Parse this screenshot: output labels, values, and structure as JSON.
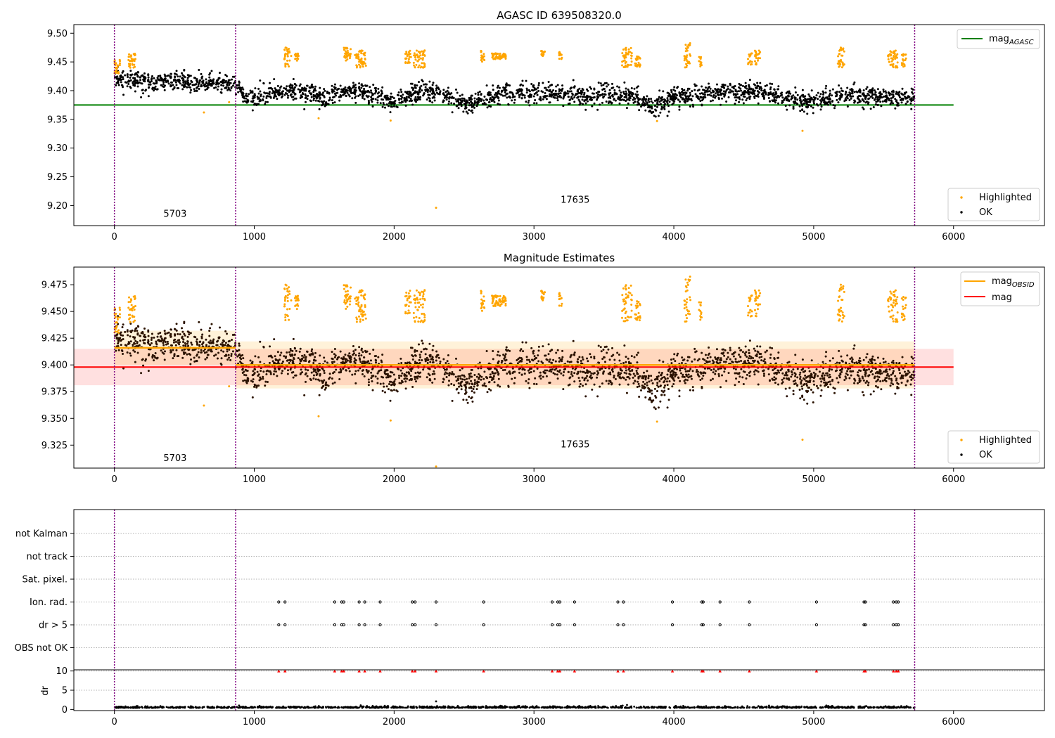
{
  "colors": {
    "ok": "#000000",
    "highlighted": "#ffa500",
    "mag_agasc": "#008000",
    "mag_obsid": "#ffa500",
    "mag": "#ff0000",
    "obsid_line": "#800080",
    "dr_flag": "#ff0000",
    "grid": "#b0b0b0"
  },
  "obsids": [
    {
      "start": 0,
      "end": 867,
      "label": "5703"
    },
    {
      "start": 867,
      "end": 5722,
      "label": "17635"
    }
  ],
  "vlines": [
    0,
    867,
    5722
  ],
  "chart_data": [
    {
      "id": "panel1",
      "type": "scatter",
      "title": "AGASC ID 639508320.0",
      "xlim": [
        -290,
        6650
      ],
      "ylim": [
        9.165,
        9.515
      ],
      "xticks": [
        0,
        1000,
        2000,
        3000,
        4000,
        5000,
        6000
      ],
      "yticks": [
        9.2,
        9.25,
        9.3,
        9.35,
        9.4,
        9.45,
        9.5
      ],
      "ytick_decimals": 2,
      "mag_agasc": 9.375,
      "mag_agasc_xrange": [
        -290,
        6000
      ],
      "legend_lines": [
        {
          "label": "mag",
          "sub": "AGASC",
          "color": "#008000"
        }
      ],
      "legend_points": [
        {
          "label": "Highlighted",
          "color": "#ffa500"
        },
        {
          "label": "OK",
          "color": "#000000"
        }
      ],
      "obsid_label_y": [
        9.18,
        9.205
      ],
      "series": {
        "ok_baseline": {
          "points": [
            [
              0,
              9.425
            ],
            [
              150,
              9.418
            ],
            [
              300,
              9.412
            ],
            [
              450,
              9.42
            ],
            [
              600,
              9.41
            ],
            [
              700,
              9.415
            ],
            [
              867,
              9.41
            ],
            [
              950,
              9.385
            ],
            [
              1100,
              9.395
            ],
            [
              1200,
              9.4
            ],
            [
              1400,
              9.395
            ],
            [
              1500,
              9.385
            ],
            [
              1700,
              9.4
            ],
            [
              1900,
              9.39
            ],
            [
              2000,
              9.38
            ],
            [
              2200,
              9.4
            ],
            [
              2400,
              9.39
            ],
            [
              2500,
              9.375
            ],
            [
              2800,
              9.397
            ],
            [
              3100,
              9.395
            ],
            [
              3400,
              9.39
            ],
            [
              3700,
              9.395
            ],
            [
              3850,
              9.37
            ],
            [
              4000,
              9.39
            ],
            [
              4300,
              9.395
            ],
            [
              4600,
              9.4
            ],
            [
              4900,
              9.38
            ],
            [
              5200,
              9.39
            ],
            [
              5500,
              9.39
            ],
            [
              5722,
              9.385
            ]
          ],
          "spread": 0.014,
          "count": 2600
        },
        "highlighted_clusters": [
          {
            "x": [
              0,
              40
            ],
            "y": [
              9.43,
              9.46
            ]
          },
          {
            "x": [
              100,
              150
            ],
            "y": [
              9.44,
              9.465
            ]
          },
          {
            "x": [
              1215,
              1265
            ],
            "y": [
              9.44,
              9.475
            ]
          },
          {
            "x": [
              1290,
              1320
            ],
            "y": [
              9.45,
              9.465
            ]
          },
          {
            "x": [
              1640,
              1690
            ],
            "y": [
              9.45,
              9.475
            ]
          },
          {
            "x": [
              1720,
              1800
            ],
            "y": [
              9.44,
              9.47
            ]
          },
          {
            "x": [
              2080,
              2120
            ],
            "y": [
              9.445,
              9.47
            ]
          },
          {
            "x": [
              2140,
              2220
            ],
            "y": [
              9.44,
              9.47
            ]
          },
          {
            "x": [
              2620,
              2650
            ],
            "y": [
              9.45,
              9.47
            ]
          },
          {
            "x": [
              2700,
              2800
            ],
            "y": [
              9.455,
              9.465
            ]
          },
          {
            "x": [
              3050,
              3080
            ],
            "y": [
              9.46,
              9.47
            ]
          },
          {
            "x": [
              3180,
              3200
            ],
            "y": [
              9.455,
              9.47
            ]
          },
          {
            "x": [
              3630,
              3700
            ],
            "y": [
              9.44,
              9.475
            ]
          },
          {
            "x": [
              3720,
              3760
            ],
            "y": [
              9.44,
              9.46
            ]
          },
          {
            "x": [
              4070,
              4120
            ],
            "y": [
              9.44,
              9.485
            ]
          },
          {
            "x": [
              4180,
              4200
            ],
            "y": [
              9.44,
              9.46
            ]
          },
          {
            "x": [
              4530,
              4560
            ],
            "y": [
              9.445,
              9.465
            ]
          },
          {
            "x": [
              4580,
              4620
            ],
            "y": [
              9.445,
              9.47
            ]
          },
          {
            "x": [
              5170,
              5220
            ],
            "y": [
              9.44,
              9.475
            ]
          },
          {
            "x": [
              5530,
              5600
            ],
            "y": [
              9.44,
              9.47
            ]
          },
          {
            "x": [
              5630,
              5660
            ],
            "y": [
              9.44,
              9.465
            ]
          }
        ],
        "highlighted_singles": [
          [
            640,
            9.362
          ],
          [
            820,
            9.38
          ],
          [
            1460,
            9.352
          ],
          [
            1975,
            9.348
          ],
          [
            2300,
            9.196
          ],
          [
            3880,
            9.347
          ],
          [
            4920,
            9.33
          ]
        ]
      }
    },
    {
      "id": "panel2",
      "type": "scatter",
      "title": "Magnitude Estimates",
      "xlim": [
        -290,
        6650
      ],
      "ylim": [
        9.3035,
        9.4915
      ],
      "xticks": [
        0,
        1000,
        2000,
        3000,
        4000,
        5000,
        6000
      ],
      "yticks": [
        9.325,
        9.35,
        9.375,
        9.4,
        9.425,
        9.45,
        9.475
      ],
      "ytick_decimals": 3,
      "mag": 9.398,
      "mag_band": [
        9.381,
        9.415
      ],
      "mag_xrange": [
        -290,
        6000
      ],
      "mag_obsid": [
        {
          "x": [
            0,
            867
          ],
          "value": 9.416,
          "band": [
            9.4,
            9.432
          ]
        },
        {
          "x": [
            867,
            5722
          ],
          "value": 9.4,
          "band": [
            9.378,
            9.422
          ]
        }
      ],
      "legend_lines": [
        {
          "label": "mag",
          "sub": "OBSID",
          "color": "#ffa500"
        },
        {
          "label": "mag",
          "sub": "",
          "color": "#ff0000"
        }
      ],
      "legend_points": [
        {
          "label": "Highlighted",
          "color": "#ffa500"
        },
        {
          "label": "OK",
          "color": "#000000"
        }
      ],
      "obsid_label_y": [
        9.31,
        9.323
      ],
      "extra_singles": [
        [
          2300,
          9.305
        ]
      ]
    },
    {
      "id": "panel3",
      "type": "scatter",
      "xlim": [
        -290,
        6650
      ],
      "categories": [
        "not Kalman",
        "not track",
        "Sat. pixel.",
        "Ion. rad.",
        "dr > 5",
        "OBS not OK"
      ],
      "flag_times": [
        1175,
        1220,
        1575,
        1625,
        1640,
        1750,
        1790,
        1900,
        2130,
        2150,
        2300,
        2640,
        3130,
        3170,
        3185,
        3290,
        3600,
        3640,
        3990,
        4200,
        4210,
        4330,
        4540,
        5020,
        5360,
        5370,
        5570,
        5590,
        5605
      ],
      "flag_rows": [
        "Ion. rad.",
        "dr > 5"
      ]
    },
    {
      "id": "panel4",
      "type": "scatter",
      "xlim": [
        -290,
        6650
      ],
      "ylim": [
        -0.3,
        10.3
      ],
      "yticks": [
        0,
        5,
        10
      ],
      "ylabel": "dr",
      "xticks": [
        0,
        1000,
        2000,
        3000,
        4000,
        5000,
        6000
      ],
      "dr_base": 0.4,
      "dr_spike": [
        2300,
        2.1
      ],
      "dr_flag_value": 10
    }
  ]
}
